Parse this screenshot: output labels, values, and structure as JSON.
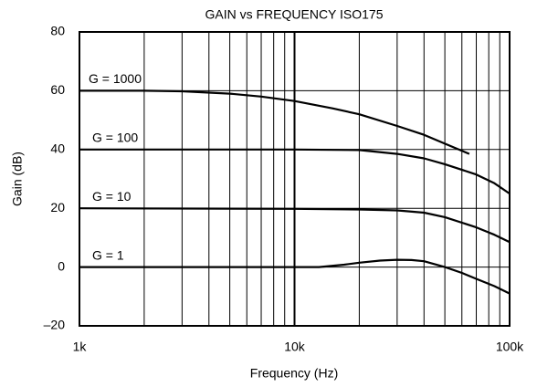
{
  "chart_data": {
    "type": "line",
    "title": "GAIN vs FREQUENCY ISO175",
    "x_label": "Frequency (Hz)",
    "y_label": "Gain (dB)",
    "xscale": "log",
    "xlim": [
      1000,
      100000
    ],
    "xticks": [
      {
        "value": 1000,
        "label": "1k"
      },
      {
        "value": 10000,
        "label": "10k"
      },
      {
        "value": 100000,
        "label": "100k"
      }
    ],
    "xminor": [
      2000,
      3000,
      4000,
      5000,
      6000,
      7000,
      8000,
      9000,
      20000,
      30000,
      40000,
      50000,
      60000,
      70000,
      80000,
      90000
    ],
    "ylim": [
      -20,
      80
    ],
    "yticks": [
      {
        "value": -20,
        "label": "–20"
      },
      0,
      20,
      40,
      60,
      80
    ],
    "grid": true,
    "series": [
      {
        "name": "G = 1000",
        "color": "#000000",
        "x": [
          1000,
          2000,
          3000,
          5000,
          7000,
          10000,
          15000,
          20000,
          30000,
          40000,
          50000,
          65000
        ],
        "values": [
          60,
          60,
          59.8,
          59,
          58,
          56.5,
          54,
          52,
          48,
          45,
          42,
          38.5
        ]
      },
      {
        "name": "G = 100",
        "color": "#000000",
        "x": [
          1000,
          5000,
          10000,
          20000,
          30000,
          40000,
          50000,
          70000,
          85000,
          100000
        ],
        "values": [
          40,
          40,
          40,
          39.8,
          38.5,
          37,
          35,
          31.5,
          28.5,
          25
        ]
      },
      {
        "name": "G = 10",
        "color": "#000000",
        "x": [
          1000,
          10000,
          20000,
          30000,
          40000,
          50000,
          70000,
          85000,
          100000
        ],
        "values": [
          20,
          19.8,
          19.6,
          19.3,
          18.5,
          17,
          13.5,
          11,
          8.5
        ]
      },
      {
        "name": "G = 1",
        "color": "#000000",
        "x": [
          1000,
          10000,
          13000,
          17000,
          20000,
          25000,
          30000,
          35000,
          40000,
          50000,
          60000,
          70000,
          85000,
          100000
        ],
        "values": [
          0,
          0,
          0,
          0.8,
          1.5,
          2.2,
          2.5,
          2.4,
          2,
          0,
          -2,
          -4,
          -6.5,
          -9
        ]
      }
    ]
  }
}
